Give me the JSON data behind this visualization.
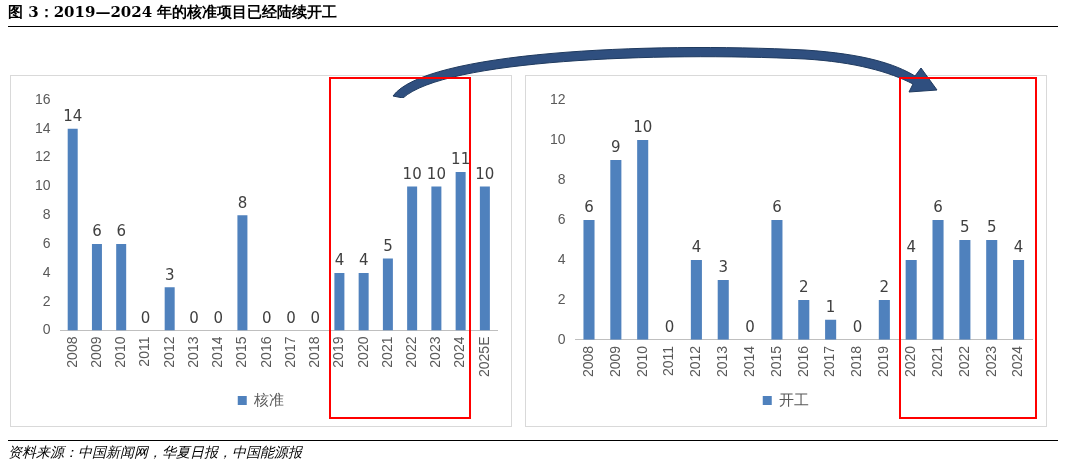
{
  "chart_data": [
    {
      "type": "bar",
      "title": "图 3：2019—2024 年的核准项目已经陆续开工",
      "categories": [
        "2008",
        "2009",
        "2010",
        "2011",
        "2012",
        "2013",
        "2014",
        "2015",
        "2016",
        "2017",
        "2018",
        "2019",
        "2020",
        "2021",
        "2022",
        "2023",
        "2024",
        "2025E"
      ],
      "series": [
        {
          "name": "核准",
          "color": "#4f81bd",
          "values": [
            14,
            6,
            6,
            0,
            3,
            0,
            0,
            8,
            0,
            0,
            0,
            4,
            4,
            5,
            10,
            10,
            11,
            10
          ]
        }
      ],
      "ylim": [
        0,
        16
      ],
      "yticks": [
        0,
        2,
        4,
        6,
        8,
        10,
        12,
        14,
        16
      ],
      "data_labels": true,
      "legend": "bottom"
    },
    {
      "type": "bar",
      "categories": [
        "2008",
        "2009",
        "2010",
        "2011",
        "2012",
        "2013",
        "2014",
        "2015",
        "2016",
        "2017",
        "2018",
        "2019",
        "2020",
        "2021",
        "2022",
        "2023",
        "2024"
      ],
      "series": [
        {
          "name": "开工",
          "color": "#4f81bd",
          "values": [
            6,
            9,
            10,
            0,
            4,
            3,
            0,
            6,
            2,
            1,
            0,
            2,
            4,
            6,
            5,
            5,
            4
          ]
        }
      ],
      "ylim": [
        0,
        12
      ],
      "yticks": [
        0,
        2,
        4,
        6,
        8,
        10,
        12
      ],
      "data_labels": true,
      "legend": "bottom",
      "annotations": [
        "资料来源：中国新闻网，华夏日报，中国能源报"
      ]
    }
  ]
}
